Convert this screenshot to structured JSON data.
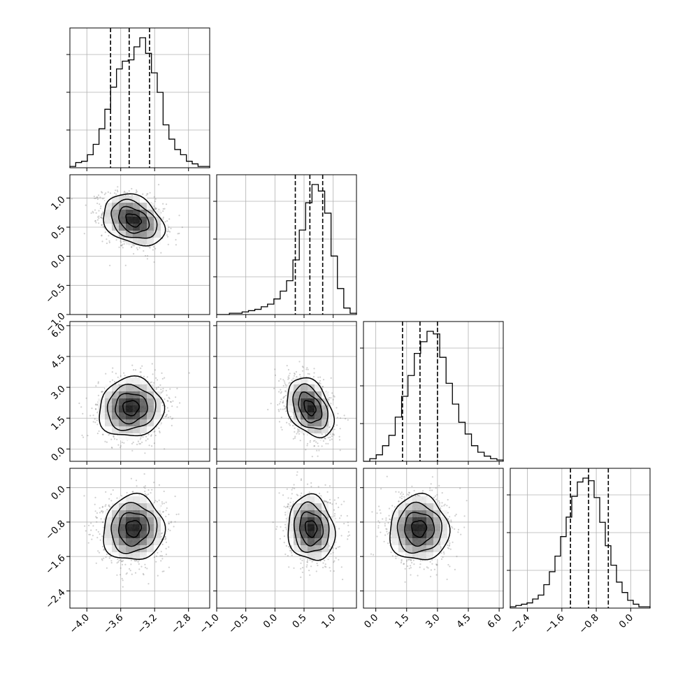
{
  "chart_data": {
    "type": "corner",
    "parameters": [
      {
        "range": [
          -4.2,
          -2.55
        ],
        "ticks": [
          -4.0,
          -3.6,
          -3.2,
          -2.8
        ],
        "tick_labels": [
          "−4.0",
          "−3.6",
          "−3.2",
          "−2.8"
        ],
        "quantiles": [
          -3.72,
          -3.5,
          -3.26
        ]
      },
      {
        "range": [
          -1.0,
          1.4
        ],
        "ticks": [
          -1.0,
          -0.5,
          0.0,
          0.5,
          1.0
        ],
        "tick_labels": [
          "−1.0",
          "−0.5",
          "0.0",
          "0.5",
          "1.0"
        ],
        "quantiles": [
          0.35,
          0.6,
          0.82
        ]
      },
      {
        "range": [
          -0.6,
          6.2
        ],
        "ticks": [
          0.0,
          1.5,
          3.0,
          4.5,
          6.0
        ],
        "tick_labels": [
          "0.0",
          "1.5",
          "3.0",
          "4.5",
          "6.0"
        ],
        "quantiles": [
          1.3,
          2.15,
          3.0
        ]
      },
      {
        "range": [
          -2.8,
          0.45
        ],
        "ticks": [
          -2.4,
          -1.6,
          -0.8,
          0.0
        ],
        "tick_labels": [
          "−2.4",
          "−1.6",
          "−0.8",
          "0.0"
        ],
        "quantiles": [
          -1.4,
          -0.98,
          -0.52
        ]
      }
    ],
    "histograms": [
      [
        0.01,
        0.04,
        0.05,
        0.1,
        0.18,
        0.3,
        0.45,
        0.62,
        0.76,
        0.82,
        0.83,
        0.93,
        1.0,
        0.88,
        0.73,
        0.58,
        0.33,
        0.22,
        0.14,
        0.1,
        0.05,
        0.03,
        0.01,
        0.01
      ],
      [
        0.0,
        0.0,
        0.01,
        0.01,
        0.02,
        0.03,
        0.04,
        0.06,
        0.08,
        0.12,
        0.18,
        0.26,
        0.42,
        0.65,
        0.86,
        1.0,
        0.95,
        0.78,
        0.45,
        0.2,
        0.05,
        0.01
      ],
      [
        0.0,
        0.02,
        0.05,
        0.12,
        0.2,
        0.34,
        0.5,
        0.66,
        0.83,
        0.92,
        1.0,
        0.98,
        0.8,
        0.6,
        0.44,
        0.3,
        0.21,
        0.12,
        0.07,
        0.04,
        0.02,
        0.01
      ],
      [
        0.01,
        0.02,
        0.03,
        0.04,
        0.07,
        0.1,
        0.18,
        0.28,
        0.4,
        0.55,
        0.7,
        0.86,
        0.97,
        1.0,
        0.98,
        0.85,
        0.66,
        0.48,
        0.33,
        0.2,
        0.12,
        0.06,
        0.03,
        0.01,
        0.01
      ]
    ],
    "pairs": [
      {
        "row": 1,
        "col": 0,
        "center": [
          -3.45,
          0.62
        ],
        "sigma": [
          0.18,
          0.22
        ],
        "rho": -0.3
      },
      {
        "row": 2,
        "col": 0,
        "center": [
          -3.48,
          2.0
        ],
        "sigma": [
          0.19,
          0.72
        ],
        "rho": 0.05
      },
      {
        "row": 2,
        "col": 1,
        "center": [
          0.6,
          2.0
        ],
        "sigma": [
          0.2,
          0.72
        ],
        "rho": -0.35
      },
      {
        "row": 3,
        "col": 0,
        "center": [
          -3.45,
          -0.95
        ],
        "sigma": [
          0.18,
          0.38
        ],
        "rho": 0.05
      },
      {
        "row": 3,
        "col": 1,
        "center": [
          0.62,
          -0.95
        ],
        "sigma": [
          0.2,
          0.38
        ],
        "rho": -0.1
      },
      {
        "row": 3,
        "col": 2,
        "center": [
          2.1,
          -0.95
        ],
        "sigma": [
          0.72,
          0.38
        ],
        "rho": 0.0
      }
    ],
    "grid": true,
    "title": "",
    "xlabel": "",
    "ylabel": ""
  }
}
